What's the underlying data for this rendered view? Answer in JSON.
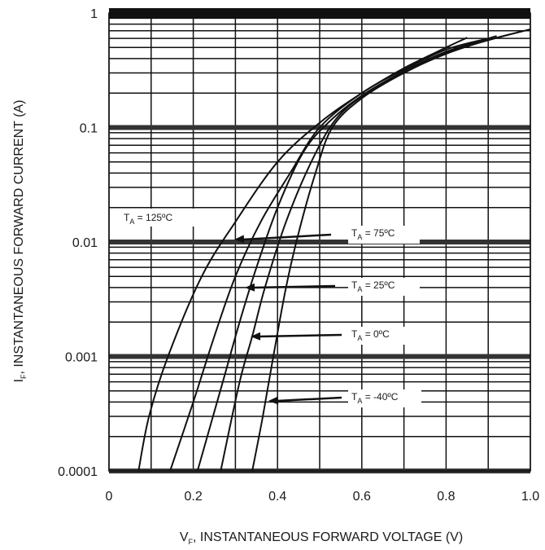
{
  "chart_data": {
    "type": "line",
    "xlabel": {
      "main": "V",
      "sub": "F",
      "rest": ", INSTANTANEOUS FORWARD VOLTAGE (V)"
    },
    "ylabel": {
      "main": "I",
      "sub": "F",
      "rest": ", INSTANTANEOUS FORWARD CURRENT (A)"
    },
    "xlim": [
      0,
      1.0
    ],
    "ylim": [
      0.0001,
      1
    ],
    "yscale": "log",
    "grid": true,
    "x_ticks": [
      0,
      0.2,
      0.4,
      0.6,
      0.8,
      1.0
    ],
    "x_tick_labels": [
      "0",
      "0.2",
      "0.4",
      "0.6",
      "0.8",
      "1.0"
    ],
    "y_ticks": [
      0.0001,
      0.001,
      0.01,
      0.1,
      1
    ],
    "y_tick_labels": [
      "0.0001",
      "0.001",
      "0.01",
      "0.1",
      "1"
    ],
    "series": [
      {
        "name": "T_A = 125ºC",
        "label": {
          "main": "T",
          "sub": "A",
          "rest": " = 125ºC"
        },
        "points": [
          [
            0.07,
            0.0001
          ],
          [
            0.095,
            0.0003
          ],
          [
            0.14,
            0.001
          ],
          [
            0.22,
            0.005
          ],
          [
            0.3,
            0.015
          ],
          [
            0.4,
            0.05
          ],
          [
            0.5,
            0.11
          ],
          [
            0.6,
            0.2
          ],
          [
            0.7,
            0.33
          ],
          [
            0.8,
            0.5
          ],
          [
            0.85,
            0.61
          ]
        ]
      },
      {
        "name": "T_A = 75ºC",
        "label": {
          "main": "T",
          "sub": "A",
          "rest": " = 75ºC"
        },
        "points": [
          [
            0.145,
            0.0001
          ],
          [
            0.2,
            0.0004
          ],
          [
            0.25,
            0.0015
          ],
          [
            0.3,
            0.005
          ],
          [
            0.36,
            0.015
          ],
          [
            0.43,
            0.04
          ],
          [
            0.5,
            0.1
          ],
          [
            0.6,
            0.2
          ],
          [
            0.7,
            0.32
          ],
          [
            0.8,
            0.48
          ],
          [
            0.9,
            0.6
          ]
        ]
      },
      {
        "name": "T_A = 25ºC",
        "label": {
          "main": "T",
          "sub": "A",
          "rest": " = 25ºC"
        },
        "points": [
          [
            0.21,
            0.0001
          ],
          [
            0.27,
            0.0006
          ],
          [
            0.31,
            0.002
          ],
          [
            0.35,
            0.006
          ],
          [
            0.4,
            0.02
          ],
          [
            0.46,
            0.06
          ],
          [
            0.52,
            0.11
          ],
          [
            0.6,
            0.19
          ],
          [
            0.7,
            0.31
          ],
          [
            0.8,
            0.46
          ],
          [
            0.92,
            0.63
          ]
        ]
      },
      {
        "name": "T_A = 0ºC",
        "label": {
          "main": "T",
          "sub": "A",
          "rest": " = 0ºC"
        },
        "points": [
          [
            0.265,
            0.0001
          ],
          [
            0.31,
            0.0006
          ],
          [
            0.34,
            0.0015
          ],
          [
            0.37,
            0.004
          ],
          [
            0.42,
            0.015
          ],
          [
            0.48,
            0.05
          ],
          [
            0.54,
            0.12
          ],
          [
            0.62,
            0.21
          ],
          [
            0.7,
            0.3
          ],
          [
            0.8,
            0.45
          ],
          [
            0.95,
            0.65
          ]
        ]
      },
      {
        "name": "T_A = -40ºC",
        "label": {
          "main": "T",
          "sub": "A",
          "rest": " = -40ºC"
        },
        "points": [
          [
            0.34,
            0.0001
          ],
          [
            0.365,
            0.0003
          ],
          [
            0.39,
            0.001
          ],
          [
            0.42,
            0.004
          ],
          [
            0.45,
            0.012
          ],
          [
            0.49,
            0.04
          ],
          [
            0.53,
            0.1
          ],
          [
            0.6,
            0.18
          ],
          [
            0.7,
            0.3
          ],
          [
            0.8,
            0.44
          ],
          [
            0.9,
            0.58
          ],
          [
            1.0,
            0.72
          ]
        ]
      }
    ]
  }
}
